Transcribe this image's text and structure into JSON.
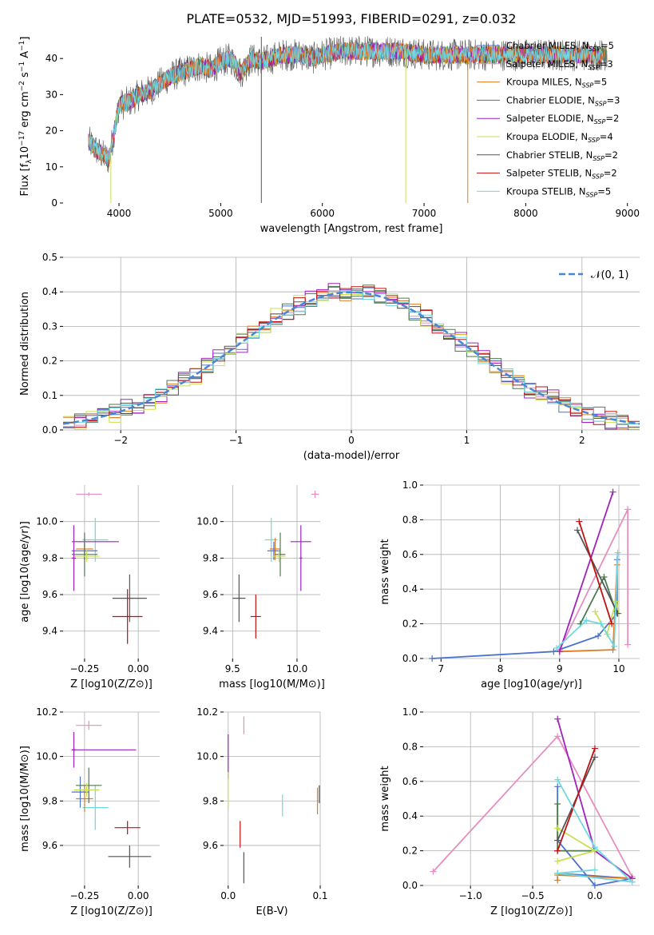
{
  "figure_title": "PLATE=0532, MJD=51993, FIBERID=0291, z=0.032",
  "colors": {
    "chabrier_miles": "#4c72d0",
    "salpeter_miles": "#e58fc0",
    "kroupa_miles": "#e07a1f",
    "chabrier_elodie": "#4f7a4f",
    "salpeter_elodie": "#a020c0",
    "kroupa_elodie": "#c8e050",
    "chabrier_stelib": "#555555",
    "salpeter_stelib": "#c01010",
    "kroupa_stelib": "#70d8e0",
    "gaussian": "#4a86d8"
  },
  "chart_data": [
    {
      "panel": "spectrum",
      "type": "line",
      "title": "PLATE=0532, MJD=51993, FIBERID=0291, z=0.032",
      "xlabel": "wavelength [Angstrom, rest frame]",
      "ylabel": "Flux [f_λ 10^-17 erg cm^-2 s^-1 A^-1]",
      "xlim": [
        3450,
        9120
      ],
      "ylim": [
        0,
        48
      ],
      "xticks": [
        "4000",
        "5000",
        "6000",
        "7000",
        "8000",
        "9000"
      ],
      "yticks": [
        "0",
        "10",
        "20",
        "30",
        "40"
      ],
      "legend_loc": "upper right",
      "legend": [
        {
          "label": "Chabrier MILES, N",
          "sub": "SSP",
          "suffix": "=5",
          "color": "chabrier_miles"
        },
        {
          "label": "Salpeter MILES, N",
          "sub": "SSP",
          "suffix": "=3",
          "color": "salpeter_miles"
        },
        {
          "label": "Kroupa MILES, N",
          "sub": "SSP",
          "suffix": "=5",
          "color": "kroupa_miles"
        },
        {
          "label": "Chabrier ELODIE, N",
          "sub": "SSP",
          "suffix": "=3",
          "color": "chabrier_elodie"
        },
        {
          "label": "Salpeter ELODIE, N",
          "sub": "SSP",
          "suffix": "=2",
          "color": "salpeter_elodie"
        },
        {
          "label": "Kroupa ELODIE, N",
          "sub": "SSP",
          "suffix": "=4",
          "color": "kroupa_elodie"
        },
        {
          "label": "Chabrier STELIB, N",
          "sub": "SSP",
          "suffix": "=2",
          "color": "chabrier_stelib"
        },
        {
          "label": "Salpeter STELIB, N",
          "sub": "SSP",
          "suffix": "=2",
          "color": "salpeter_stelib"
        },
        {
          "label": "Kroupa STELIB, N",
          "sub": "SSP",
          "suffix": "=5",
          "color": "kroupa_stelib"
        }
      ],
      "continuum": {
        "x": [
          3700,
          3800,
          3900,
          4000,
          4100,
          4200,
          4300,
          4400,
          4500,
          4600,
          4700,
          4800,
          4900,
          5000,
          5100,
          5200,
          5300,
          5400,
          5500,
          5600,
          5700,
          5800,
          5900,
          6000,
          6200,
          6400,
          6600,
          6800,
          7000,
          7200,
          7400,
          7600
        ],
        "y": [
          17,
          14,
          12,
          27,
          28,
          30,
          31,
          33,
          35,
          36,
          37,
          38,
          37,
          39,
          40,
          36,
          40,
          39,
          40,
          41,
          41,
          41,
          40,
          41,
          42,
          42,
          42,
          42,
          41,
          41,
          41,
          41
        ]
      },
      "spikes": [
        {
          "x": 5400,
          "y_from": 46,
          "y_to": 0,
          "series": "chabrier_stelib"
        },
        {
          "x": 6820,
          "y_from": 42,
          "y_to": 0,
          "series": "kroupa_elodie"
        },
        {
          "x": 7430,
          "y_from": 40,
          "y_to": 0,
          "series": "kroupa_miles"
        },
        {
          "x": 3920,
          "y_from": 14,
          "y_to": 0,
          "series": "kroupa_elodie"
        }
      ]
    },
    {
      "panel": "residuals",
      "type": "histogram",
      "xlabel": "(data-model)/error",
      "ylabel": "Normed distribution",
      "xlim": [
        -2.5,
        2.5
      ],
      "ylim": [
        0,
        0.5
      ],
      "xticks": [
        "−2",
        "−1",
        "0",
        "1",
        "2"
      ],
      "yticks": [
        "0.0",
        "0.1",
        "0.2",
        "0.3",
        "0.4",
        "0.5"
      ],
      "bin_width": 0.1,
      "legend_loc": "upper right",
      "legend_label": "𝒩(0, 1)",
      "gaussian": {
        "mean": 0,
        "sigma": 1,
        "style": "dashed"
      },
      "series": [
        {
          "color": "chabrier_miles",
          "jitter": 0.021
        },
        {
          "color": "salpeter_miles",
          "jitter": 0.018
        },
        {
          "color": "kroupa_miles",
          "jitter": 0.024
        },
        {
          "color": "chabrier_elodie",
          "jitter": 0.027
        },
        {
          "color": "salpeter_elodie",
          "jitter": 0.03
        },
        {
          "color": "kroupa_elodie",
          "jitter": 0.029
        },
        {
          "color": "chabrier_stelib",
          "jitter": 0.02
        },
        {
          "color": "salpeter_stelib",
          "jitter": 0.025
        },
        {
          "color": "kroupa_stelib",
          "jitter": 0.019
        }
      ]
    },
    {
      "panel": "age_vs_Z",
      "type": "errorbar",
      "xlabel": "Z [log10(Z/Z⊙)]",
      "ylabel": "age  [log10(age/yr)]",
      "xlim": [
        -0.35,
        0.1
      ],
      "ylim": [
        9.25,
        10.2
      ],
      "xticks": [
        {
          "v": -0.25,
          "t": "−0.25"
        },
        {
          "v": 0.0,
          "t": "0.00"
        }
      ],
      "yticks": [
        {
          "v": 9.4,
          "t": "9.4"
        },
        {
          "v": 9.6,
          "t": "9.6"
        },
        {
          "v": 9.8,
          "t": "9.8"
        },
        {
          "v": 10.0,
          "t": "10.0"
        }
      ],
      "points": [
        {
          "x": -0.23,
          "y": 10.15,
          "xerr": 0.06,
          "yerr": 0.01,
          "color": "salpeter_miles"
        },
        {
          "x": -0.2,
          "y": 9.9,
          "xerr": 0.06,
          "yerr": 0.12,
          "color": "kroupa_stelib"
        },
        {
          "x": -0.2,
          "y": 9.89,
          "xerr": 0.11,
          "yerr": 0.0,
          "color": "salpeter_elodie"
        },
        {
          "x": -0.25,
          "y": 9.85,
          "xerr": 0.04,
          "yerr": 0.06,
          "color": "kroupa_miles"
        },
        {
          "x": -0.25,
          "y": 9.84,
          "xerr": 0.06,
          "yerr": 0.05,
          "color": "chabrier_miles"
        },
        {
          "x": -0.25,
          "y": 9.82,
          "xerr": 0.06,
          "yerr": 0.12,
          "color": "chabrier_elodie"
        },
        {
          "x": -0.24,
          "y": 9.81,
          "xerr": 0.06,
          "yerr": 0.03,
          "color": "kroupa_elodie"
        },
        {
          "x": -0.3,
          "y": 9.8,
          "xerr": 0.01,
          "yerr": 0.18,
          "color": "salpeter_elodie"
        },
        {
          "x": -0.04,
          "y": 9.58,
          "xerr": 0.08,
          "yerr": 0.13,
          "color": "chabrier_stelib"
        },
        {
          "x": -0.05,
          "y": 9.48,
          "xerr": 0.07,
          "yerr": 0.15,
          "color": "salpeter_stelib"
        }
      ]
    },
    {
      "panel": "age_vs_mass",
      "type": "errorbar",
      "xlabel": "mass [log10(M/M⊙)]",
      "ylabel": "",
      "xlim": [
        9.43,
        10.18
      ],
      "ylim": [
        9.25,
        10.2
      ],
      "xticks": [
        {
          "v": 9.5,
          "t": "9.5"
        },
        {
          "v": 10.0,
          "t": "10.0"
        }
      ],
      "yticks": [
        {
          "v": 9.4,
          "t": "9.4"
        },
        {
          "v": 9.6,
          "t": "9.6"
        },
        {
          "v": 9.8,
          "t": "9.8"
        },
        {
          "v": 10.0,
          "t": "10.0"
        }
      ],
      "points": [
        {
          "x": 10.14,
          "y": 10.15,
          "xerr": 0.03,
          "yerr": 0.02,
          "color": "salpeter_miles"
        },
        {
          "x": 9.8,
          "y": 9.9,
          "xerr": 0.05,
          "yerr": 0.12,
          "color": "kroupa_stelib"
        },
        {
          "x": 10.03,
          "y": 9.89,
          "xerr": 0.08,
          "yerr": 0.0,
          "color": "salpeter_elodie"
        },
        {
          "x": 9.83,
          "y": 9.85,
          "xerr": 0.04,
          "yerr": 0.06,
          "color": "kroupa_miles"
        },
        {
          "x": 9.82,
          "y": 9.84,
          "xerr": 0.05,
          "yerr": 0.05,
          "color": "chabrier_miles"
        },
        {
          "x": 9.87,
          "y": 9.82,
          "xerr": 0.04,
          "yerr": 0.12,
          "color": "chabrier_elodie"
        },
        {
          "x": 9.86,
          "y": 9.81,
          "xerr": 0.05,
          "yerr": 0.03,
          "color": "kroupa_elodie"
        },
        {
          "x": 10.03,
          "y": 9.8,
          "xerr": 0.01,
          "yerr": 0.18,
          "color": "salpeter_elodie"
        },
        {
          "x": 9.55,
          "y": 9.58,
          "xerr": 0.05,
          "yerr": 0.13,
          "color": "chabrier_stelib"
        },
        {
          "x": 9.68,
          "y": 9.48,
          "xerr": 0.04,
          "yerr": 0.12,
          "color": "salpeter_stelib"
        }
      ]
    },
    {
      "panel": "weight_vs_age",
      "type": "line",
      "xlabel": "age  [log10(age/yr)]",
      "ylabel": "mass weight",
      "xlim": [
        6.7,
        10.35
      ],
      "ylim": [
        0,
        1.0
      ],
      "xticks": [
        {
          "v": 7,
          "t": "7"
        },
        {
          "v": 8,
          "t": "8"
        },
        {
          "v": 9,
          "t": "9"
        },
        {
          "v": 10,
          "t": "10"
        }
      ],
      "yticks": [
        {
          "v": 0,
          "t": "0.0"
        },
        {
          "v": 0.2,
          "t": "0.2"
        },
        {
          "v": 0.4,
          "t": "0.4"
        },
        {
          "v": 0.6,
          "t": "0.6"
        },
        {
          "v": 0.8,
          "t": "0.8"
        },
        {
          "v": 1.0,
          "t": "1.0"
        }
      ],
      "series": [
        {
          "color": "chabrier_miles",
          "x": [
            6.85,
            8.9,
            9.65,
            9.97,
            9.97
          ],
          "y": [
            0.0,
            0.04,
            0.13,
            0.26,
            0.57
          ]
        },
        {
          "color": "salpeter_miles",
          "x": [
            9.0,
            10.15,
            10.15
          ],
          "y": [
            0.05,
            0.86,
            0.08
          ]
        },
        {
          "color": "kroupa_miles",
          "x": [
            9.0,
            9.9,
            9.97
          ],
          "y": [
            0.04,
            0.05,
            0.54
          ]
        },
        {
          "color": "chabrier_elodie",
          "x": [
            9.35,
            9.75,
            9.95
          ],
          "y": [
            0.2,
            0.47,
            0.27
          ]
        },
        {
          "color": "salpeter_elodie",
          "x": [
            9.0,
            9.9
          ],
          "y": [
            0.04,
            0.96
          ]
        },
        {
          "color": "kroupa_elodie",
          "x": [
            9.6,
            9.8,
            9.95,
            10.0
          ],
          "y": [
            0.27,
            0.14,
            0.33,
            0.26
          ]
        },
        {
          "color": "chabrier_stelib",
          "x": [
            9.3,
            9.98
          ],
          "y": [
            0.74,
            0.26
          ]
        },
        {
          "color": "salpeter_stelib",
          "x": [
            9.33,
            9.88
          ],
          "y": [
            0.79,
            0.2
          ]
        },
        {
          "color": "kroupa_stelib",
          "x": [
            8.95,
            9.45,
            9.7,
            9.92,
            9.98
          ],
          "y": [
            0.06,
            0.22,
            0.2,
            0.07,
            0.61
          ]
        }
      ]
    },
    {
      "panel": "mass_vs_Z",
      "type": "errorbar",
      "xlabel": "Z [log10(Z/Z⊙)]",
      "ylabel": "mass [log10(M/M⊙)]",
      "xlim": [
        -0.35,
        0.1
      ],
      "ylim": [
        9.42,
        10.2
      ],
      "xticks": [
        {
          "v": -0.25,
          "t": "−0.25"
        },
        {
          "v": 0.0,
          "t": "0.00"
        }
      ],
      "yticks": [
        {
          "v": 9.6,
          "t": "9.6"
        },
        {
          "v": 9.8,
          "t": "9.8"
        },
        {
          "v": 10.0,
          "t": "10.0"
        },
        {
          "v": 10.2,
          "t": "10.2"
        }
      ],
      "points": [
        {
          "x": -0.23,
          "y": 10.14,
          "xerr": 0.06,
          "yerr": 0.02,
          "color": "salpeter_miles"
        },
        {
          "x": -0.2,
          "y": 9.77,
          "xerr": 0.06,
          "yerr": 0.1,
          "color": "kroupa_stelib"
        },
        {
          "x": -0.16,
          "y": 10.03,
          "xerr": 0.15,
          "yerr": 0.0,
          "color": "salpeter_elodie"
        },
        {
          "x": -0.25,
          "y": 9.81,
          "xerr": 0.04,
          "yerr": 0.06,
          "color": "kroupa_miles"
        },
        {
          "x": -0.27,
          "y": 9.84,
          "xerr": 0.04,
          "yerr": 0.07,
          "color": "chabrier_miles"
        },
        {
          "x": -0.23,
          "y": 9.87,
          "xerr": 0.06,
          "yerr": 0.08,
          "color": "chabrier_elodie"
        },
        {
          "x": -0.24,
          "y": 9.85,
          "xerr": 0.06,
          "yerr": 0.03,
          "color": "kroupa_elodie"
        },
        {
          "x": -0.3,
          "y": 10.03,
          "xerr": 0.01,
          "yerr": 0.08,
          "color": "salpeter_elodie"
        },
        {
          "x": -0.05,
          "y": 9.68,
          "xerr": 0.06,
          "yerr": 0.03,
          "color": "salpeter_stelib"
        },
        {
          "x": -0.04,
          "y": 9.55,
          "xerr": 0.1,
          "yerr": 0.05,
          "color": "chabrier_stelib"
        }
      ]
    },
    {
      "panel": "mass_vs_EBV",
      "type": "errorbar",
      "xlabel": "E(B-V)",
      "ylabel": "",
      "xlim": [
        -0.005,
        0.1
      ],
      "ylim": [
        9.42,
        10.2
      ],
      "xticks": [
        {
          "v": 0.0,
          "t": "0.0"
        },
        {
          "v": 0.1,
          "t": "0.1"
        }
      ],
      "yticks": [
        {
          "v": 9.6,
          "t": "9.6"
        },
        {
          "v": 9.8,
          "t": "9.8"
        },
        {
          "v": 10.0,
          "t": "10.0"
        },
        {
          "v": 10.2,
          "t": "10.2"
        }
      ],
      "points": [
        {
          "x": 0.017,
          "y": 10.14,
          "xerr": 0.0,
          "yerr": 0.04,
          "color": "salpeter_miles"
        },
        {
          "x": 0.0,
          "y": 10.0,
          "xerr": 0.0,
          "yerr": 0.1,
          "color": "salpeter_elodie"
        },
        {
          "x": 0.0,
          "y": 9.85,
          "xerr": 0.0,
          "yerr": 0.08,
          "color": "kroupa_elodie"
        },
        {
          "x": 0.059,
          "y": 9.78,
          "xerr": 0.0,
          "yerr": 0.05,
          "color": "kroupa_stelib"
        },
        {
          "x": 0.097,
          "y": 9.8,
          "xerr": 0.0,
          "yerr": 0.06,
          "color": "kroupa_miles"
        },
        {
          "x": 0.099,
          "y": 9.83,
          "xerr": 0.0,
          "yerr": 0.04,
          "color": "chabrier_stelib"
        },
        {
          "x": 0.013,
          "y": 9.65,
          "xerr": 0.0,
          "yerr": 0.06,
          "color": "salpeter_stelib"
        },
        {
          "x": 0.017,
          "y": 9.5,
          "xerr": 0.0,
          "yerr": 0.07,
          "color": "chabrier_stelib"
        }
      ]
    },
    {
      "panel": "weight_vs_Z",
      "type": "line",
      "xlabel": "Z [log10(Z/Z⊙)]",
      "ylabel": "mass weight",
      "xlim": [
        -1.38,
        0.36
      ],
      "ylim": [
        0,
        1.0
      ],
      "xticks": [
        {
          "v": -1.0,
          "t": "−1.0"
        },
        {
          "v": -0.5,
          "t": "−0.5"
        },
        {
          "v": 0.0,
          "t": "0.0"
        }
      ],
      "yticks": [
        {
          "v": 0,
          "t": "0.0"
        },
        {
          "v": 0.2,
          "t": "0.2"
        },
        {
          "v": 0.4,
          "t": "0.4"
        },
        {
          "v": 0.6,
          "t": "0.6"
        },
        {
          "v": 0.8,
          "t": "0.8"
        },
        {
          "v": 1.0,
          "t": "1.0"
        }
      ],
      "series": [
        {
          "color": "chabrier_miles",
          "x": [
            -0.3,
            -0.3,
            0.0,
            0.3,
            -0.3
          ],
          "y": [
            0.57,
            0.26,
            0.0,
            0.04,
            0.07
          ]
        },
        {
          "color": "salpeter_miles",
          "x": [
            -1.3,
            -0.3,
            0.3
          ],
          "y": [
            0.08,
            0.86,
            0.05
          ]
        },
        {
          "color": "kroupa_miles",
          "x": [
            -0.3,
            -0.3,
            0.3
          ],
          "y": [
            0.03,
            0.06,
            0.04
          ]
        },
        {
          "color": "chabrier_elodie",
          "x": [
            -0.3,
            -0.3,
            0.0
          ],
          "y": [
            0.47,
            0.2,
            0.2
          ]
        },
        {
          "color": "salpeter_elodie",
          "x": [
            -0.3,
            0.0,
            0.3
          ],
          "y": [
            0.96,
            0.2,
            0.04
          ]
        },
        {
          "color": "kroupa_elodie",
          "x": [
            -0.3,
            0.0,
            -0.3
          ],
          "y": [
            0.33,
            0.2,
            0.14
          ]
        },
        {
          "color": "chabrier_stelib",
          "x": [
            -0.3,
            0.0
          ],
          "y": [
            0.26,
            0.74
          ]
        },
        {
          "color": "salpeter_stelib",
          "x": [
            -0.3,
            0.0
          ],
          "y": [
            0.2,
            0.79
          ]
        },
        {
          "color": "kroupa_stelib",
          "x": [
            -0.3,
            0.0,
            0.3,
            -0.3,
            0.0
          ],
          "y": [
            0.61,
            0.22,
            0.02,
            0.07,
            0.09
          ]
        }
      ]
    }
  ]
}
